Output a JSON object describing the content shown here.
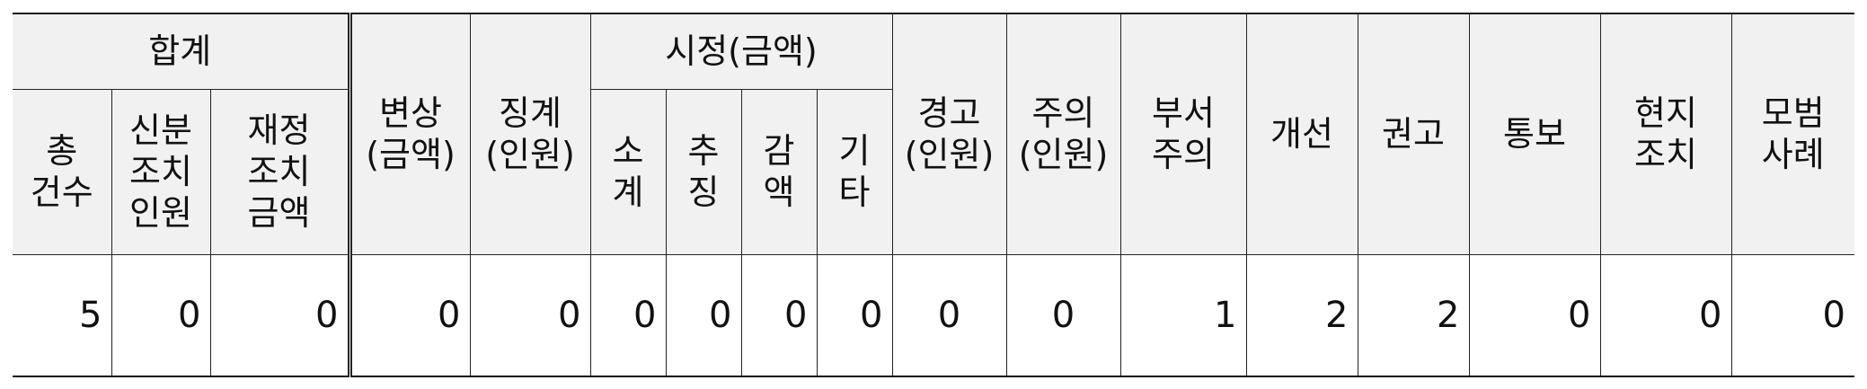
{
  "table": {
    "groups": {
      "total": "합계",
      "correction": "시정(금액)"
    },
    "headers": {
      "total_count": [
        "총",
        "건수"
      ],
      "status_action": [
        "신분",
        "조치",
        "인원"
      ],
      "finance_action": [
        "재정",
        "조치",
        "금액"
      ],
      "compensation": [
        "변상",
        "(금액)"
      ],
      "discipline": [
        "징계",
        "(인원)"
      ],
      "subtotal": [
        "소",
        "계"
      ],
      "recovery": [
        "추",
        "징"
      ],
      "reduction": [
        "감",
        "액"
      ],
      "other": [
        "기",
        "타"
      ],
      "warning": [
        "경고",
        "(인원)"
      ],
      "caution": [
        "주의",
        "(인원)"
      ],
      "dept_caution": [
        "부서",
        "주의"
      ],
      "improvement": [
        "개선"
      ],
      "recommendation": [
        "권고"
      ],
      "notice": [
        "통보"
      ],
      "onsite_action": [
        "현지",
        "조치"
      ],
      "best_practice": [
        "모범",
        "사례"
      ]
    },
    "values": {
      "total_count": "5",
      "status_action": "0",
      "finance_action": "0",
      "compensation": "0",
      "discipline": "0",
      "subtotal": "0",
      "recovery": "0",
      "reduction": "0",
      "other": "0",
      "warning": "0",
      "caution": "0",
      "dept_caution": "1",
      "improvement": "2",
      "recommendation": "2",
      "notice": "0",
      "onsite_action": "0",
      "best_practice": "0"
    }
  }
}
